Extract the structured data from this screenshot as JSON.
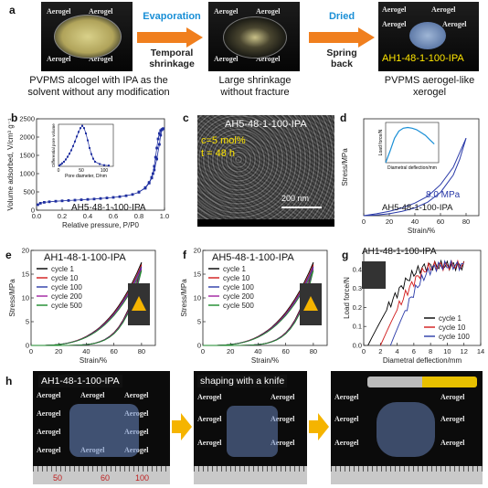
{
  "panel_a": {
    "label": "a",
    "arrow1_label": "Evaporation",
    "arrow1_sub": "Temporal\nshrinkage",
    "arrow2_label": "Dried",
    "arrow2_sub": "Spring\nback",
    "caption1": "PVPMS alcogel with IPA as the solvent without any modification",
    "caption2": "Large shrinkage without fracture",
    "caption3": "PVPMS aerogel-like xerogel",
    "photo3_label": "AH1-48-1-100-IPA",
    "watermark": "Aerogel"
  },
  "panel_b": {
    "label": "b",
    "sample": "AH5-48-1-100-IPA"
  },
  "panel_c": {
    "label": "c",
    "sample": "AH5-48-1-100-IPA",
    "line1": "c=5 mol%",
    "line2": "t = 48 h",
    "scalebar": "200 nm"
  },
  "panel_d": {
    "label": "d",
    "sample": "AH5-48-1-100-IPA",
    "annotation": "8.0 MPa"
  },
  "panel_e": {
    "label": "e",
    "sample": "AH1-48-1-100-IPA"
  },
  "panel_f": {
    "label": "f",
    "sample": "AH5-48-1-100-IPA"
  },
  "panel_g": {
    "label": "g",
    "sample": "AH1-48-1-100-IPA"
  },
  "panel_h": {
    "label": "h",
    "photo1_label": "AH1-48-1-100-IPA",
    "photo2_label": "shaping with a knife",
    "ruler_labels": [
      "50",
      "60",
      "100"
    ]
  },
  "colors": {
    "accent_blue": "#1a8fd6",
    "arrow_orange": "#f07f1e",
    "curve_blue": "#2a3aa8"
  },
  "chart_data": [
    {
      "id": "b",
      "type": "scatter",
      "xlabel": "Relative pressure, P/P0",
      "ylabel": "Volume adsorbed, V/cm³ g⁻¹",
      "xlim": [
        0,
        1.0
      ],
      "ylim": [
        0,
        2500
      ],
      "xticks": [
        "0.0",
        "0.2",
        "0.4",
        "0.6",
        "0.8",
        "1.0"
      ],
      "yticks": [
        "0",
        "500",
        "1000",
        "1500",
        "2000",
        "2500"
      ],
      "series": [
        {
          "x": [
            0.01,
            0.03,
            0.06,
            0.1,
            0.15,
            0.2,
            0.25,
            0.3,
            0.35,
            0.4,
            0.45,
            0.5,
            0.55,
            0.6,
            0.65,
            0.7,
            0.75,
            0.8,
            0.85,
            0.88,
            0.9,
            0.92,
            0.94,
            0.96,
            0.97,
            0.98,
            0.99
          ],
          "y": [
            150,
            190,
            215,
            230,
            245,
            255,
            265,
            275,
            285,
            295,
            305,
            320,
            335,
            350,
            370,
            395,
            430,
            490,
            620,
            760,
            900,
            1100,
            1400,
            1800,
            2050,
            2200,
            2230
          ]
        },
        {
          "x": [
            0.99,
            0.98,
            0.97,
            0.96,
            0.95,
            0.94,
            0.93,
            0.92,
            0.91,
            0.9,
            0.88,
            0.85,
            0.8
          ],
          "y": [
            2230,
            2210,
            2180,
            2100,
            1950,
            1700,
            1450,
            1200,
            1000,
            880,
            740,
            600,
            500
          ]
        }
      ],
      "inset": {
        "xlabel": "Pore diameter, D/nm",
        "ylabel": "Differential pore volume",
        "xticks": [
          "0",
          "50",
          "100"
        ],
        "x": [
          2,
          5,
          8,
          12,
          16,
          20,
          24,
          28,
          32,
          36,
          40,
          44,
          48,
          52,
          56,
          60,
          64,
          68,
          72,
          76,
          80,
          90,
          100,
          110
        ],
        "y": [
          0.2,
          0.5,
          0.8,
          1.2,
          1.8,
          2.5,
          3.3,
          4.2,
          5.3,
          6.5,
          7.8,
          9.0,
          10.0,
          10.6,
          10.0,
          8.6,
          6.8,
          4.8,
          3.2,
          2.0,
          1.2,
          0.6,
          0.3,
          0.2
        ]
      }
    },
    {
      "id": "d",
      "type": "line",
      "xlabel": "Strain/%",
      "ylabel": "Stress/MPa",
      "xlim": [
        0,
        90
      ],
      "ylim": [
        0,
        10
      ],
      "xticks": [
        "0",
        "20",
        "40",
        "60",
        "80"
      ],
      "series": [
        {
          "x": [
            0,
            10,
            20,
            30,
            40,
            50,
            60,
            70,
            75,
            80
          ],
          "y": [
            0,
            0.2,
            0.45,
            0.8,
            1.3,
            2.0,
            3.2,
            5.0,
            6.5,
            8.0
          ]
        },
        {
          "x": [
            80,
            75,
            70,
            60,
            50,
            40,
            30,
            20,
            10,
            0
          ],
          "y": [
            8.0,
            5.8,
            4.2,
            2.4,
            1.4,
            0.8,
            0.45,
            0.2,
            0.07,
            0
          ]
        }
      ],
      "inset": {
        "xlabel": "Diametral deflection/mm",
        "ylabel": "Load force/N",
        "x": [
          0,
          1,
          2,
          3,
          4,
          5,
          6,
          7,
          8,
          9,
          10,
          11
        ],
        "y": [
          0,
          0.8,
          1.7,
          2.2,
          2.4,
          2.45,
          2.4,
          2.3,
          2.1,
          1.9,
          1.6,
          1.3
        ]
      }
    },
    {
      "id": "e",
      "type": "line",
      "xlabel": "Strain/%",
      "ylabel": "Stress/MPa",
      "xlim": [
        0,
        90
      ],
      "ylim": [
        0,
        20
      ],
      "xticks": [
        "0",
        "20",
        "40",
        "60",
        "80"
      ],
      "yticks": [
        "0",
        "5",
        "10",
        "15",
        "20"
      ],
      "series": [
        {
          "name": "cycle 1",
          "color": "#000000",
          "peak": 17.5
        },
        {
          "name": "cycle 10",
          "color": "#d11a1a",
          "peak": 17.0
        },
        {
          "name": "cycle 100",
          "color": "#2a3aa8",
          "peak": 16.6
        },
        {
          "name": "cycle 200",
          "color": "#a020a0",
          "peak": 16.2
        },
        {
          "name": "cycle 500",
          "color": "#1a8a2a",
          "peak": 15.8
        }
      ]
    },
    {
      "id": "f",
      "type": "line",
      "xlabel": "Strain/%",
      "ylabel": "Stress/MPa",
      "xlim": [
        0,
        90
      ],
      "ylim": [
        0,
        20
      ],
      "xticks": [
        "0",
        "20",
        "40",
        "60",
        "80"
      ],
      "yticks": [
        "0",
        "5",
        "10",
        "15",
        "20"
      ],
      "series": [
        {
          "name": "cycle 1",
          "color": "#000000",
          "peak": 17.5
        },
        {
          "name": "cycle 10",
          "color": "#d11a1a",
          "peak": 17.0
        },
        {
          "name": "cycle 100",
          "color": "#2a3aa8",
          "peak": 16.6
        },
        {
          "name": "cycle 200",
          "color": "#a020a0",
          "peak": 16.2
        },
        {
          "name": "cycle 500",
          "color": "#1a8a2a",
          "peak": 15.8
        }
      ]
    },
    {
      "id": "g",
      "type": "line",
      "xlabel": "Diametral deflection/mm",
      "ylabel": "Load force/N",
      "xlim": [
        0,
        14
      ],
      "ylim": [
        0,
        0.5
      ],
      "xticks": [
        "0",
        "2",
        "4",
        "6",
        "8",
        "10",
        "12",
        "14"
      ],
      "yticks": [
        "0.0",
        "0.1",
        "0.2",
        "0.3",
        "0.4"
      ],
      "series": [
        {
          "name": "cycle 1",
          "color": "#000000",
          "offset": 0.5
        },
        {
          "name": "cycle 10",
          "color": "#d11a1a",
          "offset": 2.0
        },
        {
          "name": "cycle 100",
          "color": "#2a3aa8",
          "offset": 3.2
        }
      ]
    }
  ]
}
